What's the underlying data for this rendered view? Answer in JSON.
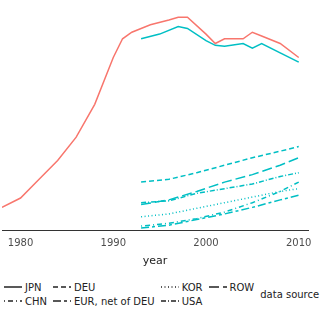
{
  "chart_data": {
    "type": "line",
    "x_label": "year",
    "xlim": [
      1978,
      2011
    ],
    "xticks": [
      1980,
      1990,
      2000,
      2010
    ],
    "ylim": [
      0,
      240
    ],
    "tick_labels": "x",
    "grid": false,
    "series": [
      {
        "name": "JPN",
        "color": "#F8766D",
        "line_style": "solid",
        "x": [
          1978,
          1980,
          1982,
          1984,
          1986,
          1988,
          1990,
          1991,
          1992,
          1994,
          1996,
          1997,
          1998,
          2000,
          2001,
          2002,
          2004,
          2005,
          2006,
          2008,
          2010
        ],
        "values": [
          25,
          35,
          55,
          75,
          100,
          135,
          185,
          205,
          212,
          220,
          225,
          228,
          228,
          210,
          200,
          205,
          205,
          212,
          208,
          200,
          185
        ]
      },
      {
        "name": "JPN",
        "color": "#00BFC4",
        "line_style": "solid",
        "x": [
          1993,
          1995,
          1997,
          1998,
          2000,
          2001,
          2002,
          2004,
          2005,
          2006,
          2008,
          2010
        ],
        "values": [
          205,
          210,
          218,
          216,
          203,
          198,
          197,
          200,
          195,
          200,
          190,
          180
        ]
      },
      {
        "name": "DEU",
        "color": "#00BFC4",
        "line_style": "dashed",
        "x": [
          1993,
          1996,
          1999,
          2002,
          2005,
          2008,
          2010
        ],
        "values": [
          52,
          55,
          62,
          70,
          78,
          85,
          90
        ]
      },
      {
        "name": "KOR",
        "color": "#00BFC4",
        "line_style": "dotted",
        "x": [
          1993,
          1996,
          1999,
          2002,
          2005,
          2008,
          2010
        ],
        "values": [
          15,
          18,
          24,
          30,
          36,
          42,
          45
        ]
      },
      {
        "name": "ROW",
        "color": "#00BFC4",
        "line_style": "longdash",
        "x": [
          1993,
          1996,
          1999,
          2002,
          2005,
          2008,
          2010
        ],
        "values": [
          28,
          33,
          42,
          52,
          60,
          70,
          78
        ]
      },
      {
        "name": "CHN",
        "color": "#00BFC4",
        "line_style": "dotdash",
        "x": [
          1993,
          1996,
          1999,
          2002,
          2005,
          2008,
          2010
        ],
        "values": [
          5,
          8,
          13,
          20,
          30,
          42,
          52
        ]
      },
      {
        "name": "EUR, net of DEU",
        "color": "#00BFC4",
        "line_style": "twodash",
        "x": [
          1993,
          1996,
          1999,
          2002,
          2005,
          2008,
          2010
        ],
        "values": [
          3,
          6,
          12,
          18,
          25,
          33,
          38
        ]
      },
      {
        "name": "USA",
        "color": "#00BFC4",
        "line_style": "dashdot",
        "x": [
          1993,
          1996,
          1999,
          2002,
          2005,
          2008,
          2010
        ],
        "values": [
          30,
          32,
          40,
          45,
          50,
          58,
          62
        ]
      }
    ],
    "color_legend": {
      "title": "data source",
      "colors": [
        "#F8766D",
        "#00BFC4"
      ]
    }
  }
}
